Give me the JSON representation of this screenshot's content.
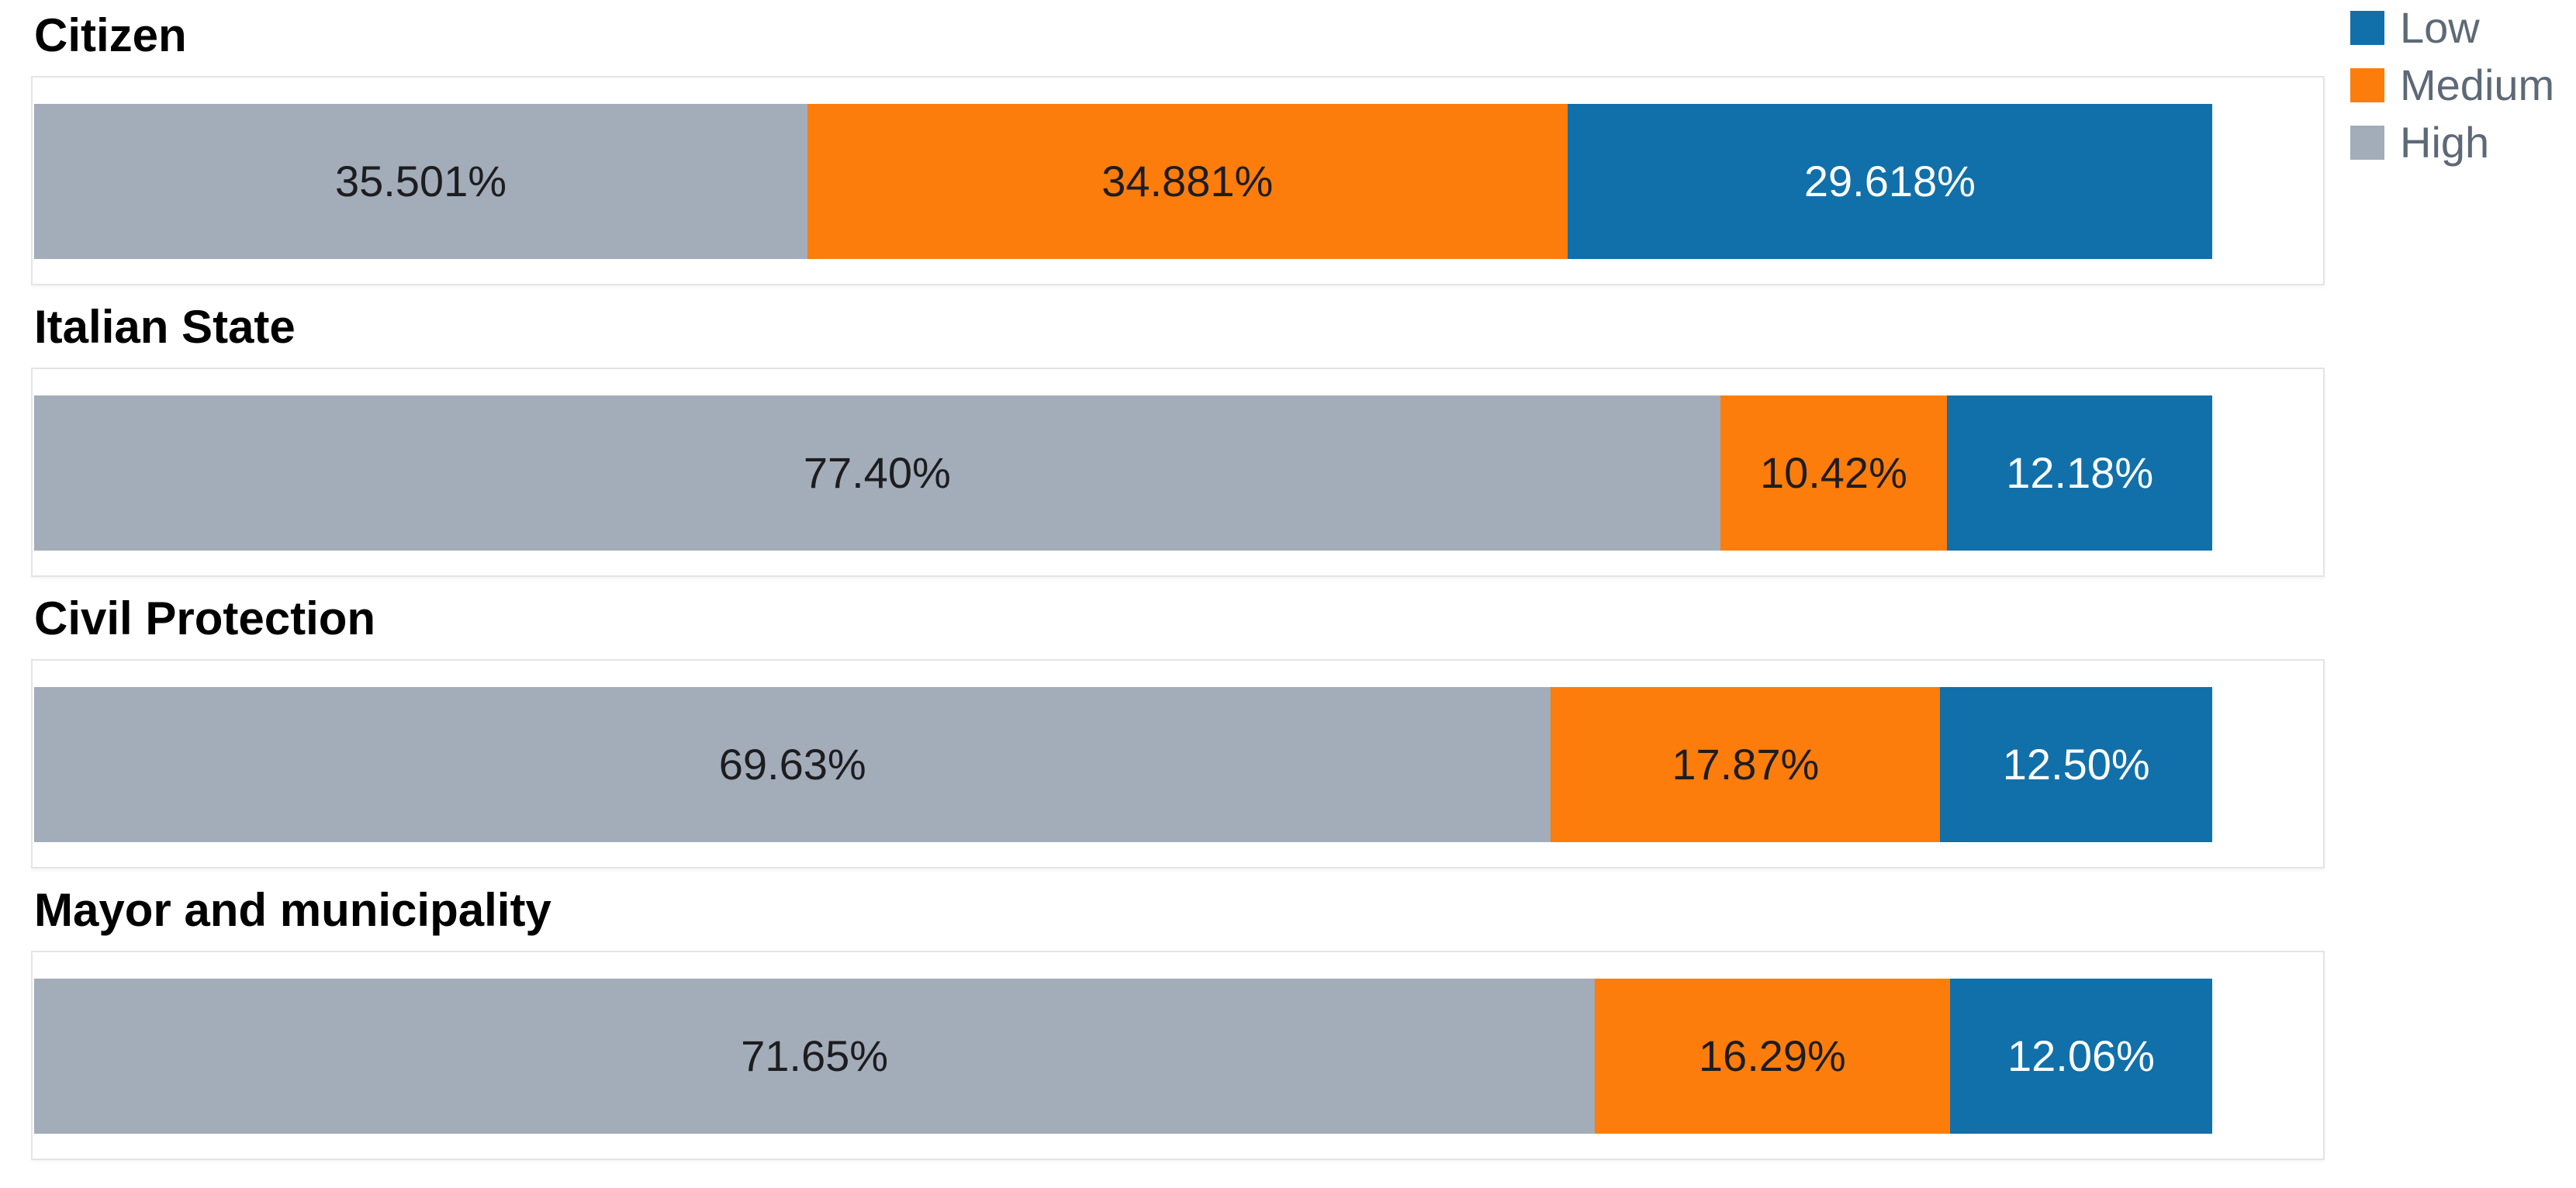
{
  "chart_data": {
    "type": "bar",
    "variant": "horizontal-stacked-100pct",
    "categories": [
      "Citizen",
      "Italian State",
      "Civil Protection",
      "Mayor and municipality"
    ],
    "series": [
      {
        "name": "High",
        "color": "#a3acb9",
        "label_color": "#1d1d1f",
        "values": [
          35.501,
          77.4,
          69.63,
          71.65
        ],
        "labels": [
          "35.501%",
          "77.40%",
          "69.63%",
          "71.65%"
        ]
      },
      {
        "name": "Medium",
        "color": "#fc7d0b",
        "label_color": "#1d1d1f",
        "values": [
          34.881,
          10.42,
          17.87,
          16.29
        ],
        "labels": [
          "34.881%",
          "10.42%",
          "17.87%",
          "16.29%"
        ]
      },
      {
        "name": "Low",
        "color": "#1170aa",
        "label_color": "#ffffff",
        "values": [
          29.618,
          12.18,
          12.5,
          12.06
        ],
        "labels": [
          "29.618%",
          "12.18%",
          "12.50%",
          "12.06%"
        ]
      }
    ],
    "segment_order_left_to_right": [
      "High",
      "Medium",
      "Low"
    ],
    "xlim": [
      0,
      105
    ],
    "bar_track_fraction_of_frame": 0.951,
    "grid": "off",
    "legend_position": "top-right",
    "title": "",
    "xlabel": "",
    "ylabel": ""
  },
  "legend": {
    "items": [
      {
        "label": "Low",
        "color": "#1170aa"
      },
      {
        "label": "Medium",
        "color": "#fc7d0b"
      },
      {
        "label": "High",
        "color": "#a3acb9"
      }
    ]
  },
  "style": {
    "frame_border_color": "#e4e4e4",
    "background_color": "#ffffff",
    "title_color": "#000000",
    "legend_text_color": "#5d6977"
  }
}
